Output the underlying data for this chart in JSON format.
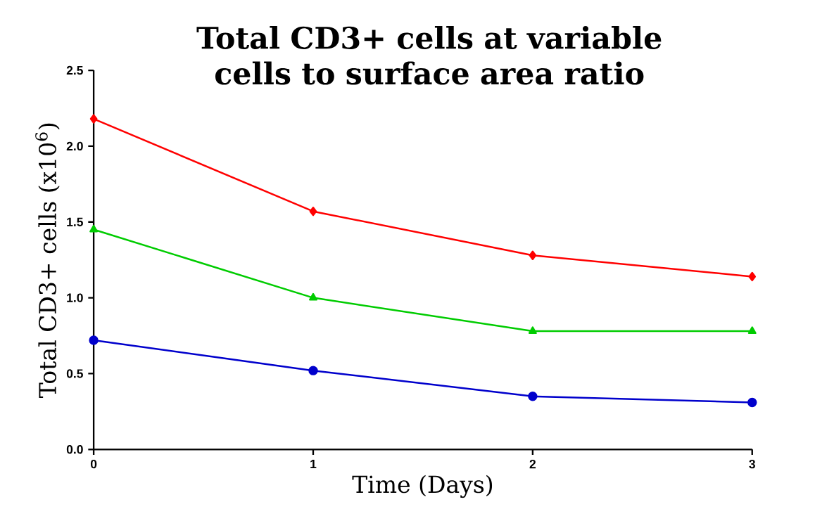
{
  "chart_data": {
    "type": "line",
    "title": "Total CD3+ cells at variable cells to surface area ratio",
    "xlabel": "Time (Days)",
    "ylabel": "Total CD3+ cells (x10$^{6}$)",
    "x": [
      0,
      1,
      2,
      3
    ],
    "series": [
      {
        "color": "#ff0000",
        "marker": "diamond",
        "values": [
          2.18,
          1.57,
          1.28,
          1.14
        ]
      },
      {
        "color": "#00cc00",
        "marker": "triangle",
        "values": [
          1.45,
          1.0,
          0.78,
          0.78
        ]
      },
      {
        "color": "#0000cc",
        "marker": "circle",
        "values": [
          0.72,
          0.52,
          0.35,
          0.31
        ]
      }
    ],
    "xlim": [
      0,
      3
    ],
    "ylim": [
      0,
      2.5
    ],
    "xticks": [
      0,
      1,
      2,
      3
    ],
    "yticks": [
      {
        "value": 0,
        "label": "0.0"
      },
      {
        "value": 0.5,
        "label": "0.5"
      },
      {
        "value": 1,
        "label": "1.0"
      },
      {
        "value": 1.5,
        "label": "1.5"
      },
      {
        "value": 2,
        "label": "2.0"
      },
      {
        "value": 2.5,
        "label": "2.5"
      }
    ],
    "grid": false,
    "line_style": "solid"
  }
}
